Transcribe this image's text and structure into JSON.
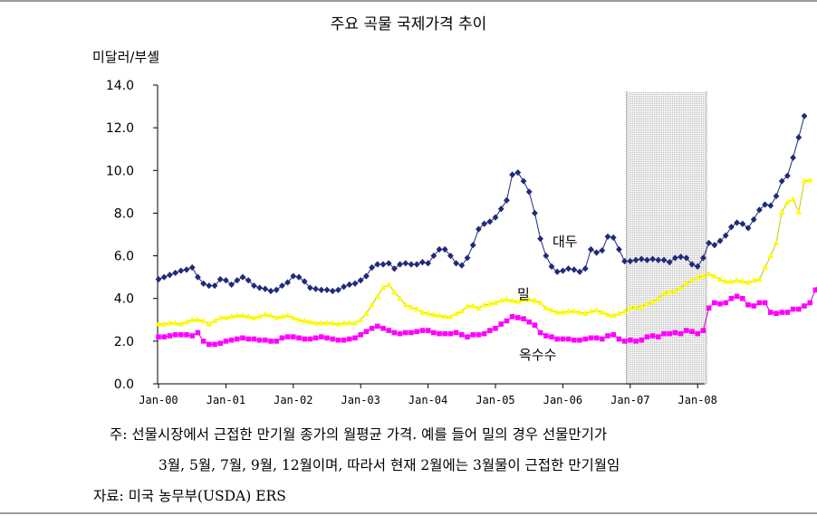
{
  "title": "주요 곡물 국제가격 추이",
  "unit_label": "미달러/부셸",
  "note_line1": "주: 선물시장에서 근접한 만기월 종가의 월평균 가격. 예를 들어 밀의 경우 선물만기가",
  "note_line2": "3월, 5월, 7월, 9월, 12월이며, 따라서 현재 2월에는 3월물이 근접한 만기월임",
  "source": "자료: 미국 농무부(USDA) ERS",
  "chart_data": {
    "type": "line",
    "title": "주요 곡물 국제가격 추이",
    "ylabel": "미달러/부셸",
    "ylim": [
      0,
      14
    ],
    "y_ticks": [
      "14.0",
      "12.0",
      "10.0",
      "8.0",
      "6.0",
      "4.0",
      "2.0",
      "0.0"
    ],
    "x_ticks": [
      "Jan-00",
      "Jan-01",
      "Jan-02",
      "Jan-03",
      "Jan-04",
      "Jan-05",
      "Jan-06",
      "Jan-07",
      "Jan-08"
    ],
    "x_start": "Jan-00",
    "shaded_region": [
      "Dec-06",
      "Feb-08"
    ],
    "series": [
      {
        "name": "대두",
        "color": "#1f2a7a",
        "marker": "diamond",
        "values": [
          4.9,
          5.0,
          5.1,
          5.2,
          5.3,
          5.35,
          5.45,
          5.0,
          4.7,
          4.6,
          4.6,
          4.9,
          4.85,
          4.65,
          4.85,
          5.0,
          4.85,
          4.6,
          4.5,
          4.45,
          4.35,
          4.4,
          4.6,
          4.75,
          5.05,
          5.0,
          4.8,
          4.5,
          4.45,
          4.4,
          4.4,
          4.35,
          4.4,
          4.55,
          4.65,
          4.7,
          4.85,
          5.05,
          5.45,
          5.6,
          5.6,
          5.65,
          5.4,
          5.6,
          5.65,
          5.6,
          5.6,
          5.7,
          5.65,
          6.0,
          6.3,
          6.3,
          6.0,
          5.65,
          5.55,
          5.9,
          6.5,
          7.25,
          7.5,
          7.6,
          7.8,
          8.2,
          8.6,
          9.8,
          9.9,
          9.5,
          9.0,
          8.0,
          6.8,
          6.0,
          5.5,
          5.25,
          5.3,
          5.4,
          5.35,
          5.25,
          5.4,
          6.3,
          6.15,
          6.25,
          6.9,
          6.85,
          6.3,
          5.75,
          5.75,
          5.8,
          5.85,
          5.8,
          5.85,
          5.8,
          5.8,
          5.7,
          5.9,
          5.95,
          5.9,
          5.6,
          5.5,
          5.9,
          6.6,
          6.5,
          6.7,
          6.95,
          7.35,
          7.55,
          7.5,
          7.3,
          7.7,
          8.15,
          8.4,
          8.35,
          8.8,
          9.5,
          9.75,
          10.6,
          11.55,
          12.55
        ]
      },
      {
        "name": "밀",
        "color": "#ffff00",
        "marker": "triangle",
        "values": [
          2.8,
          2.8,
          2.85,
          2.85,
          2.8,
          2.9,
          3.0,
          3.0,
          2.95,
          2.8,
          2.95,
          3.1,
          3.1,
          3.15,
          3.2,
          3.2,
          3.15,
          3.1,
          3.15,
          3.25,
          3.2,
          3.1,
          3.15,
          3.2,
          3.1,
          3.0,
          2.95,
          2.9,
          2.85,
          2.85,
          2.85,
          2.85,
          2.8,
          2.85,
          2.85,
          2.85,
          3.0,
          3.3,
          3.7,
          4.1,
          4.5,
          4.65,
          4.3,
          4.0,
          3.7,
          3.6,
          3.5,
          3.35,
          3.3,
          3.25,
          3.2,
          3.15,
          3.15,
          3.3,
          3.4,
          3.65,
          3.65,
          3.55,
          3.7,
          3.75,
          3.8,
          3.9,
          3.95,
          3.9,
          3.85,
          3.95,
          3.95,
          3.9,
          3.8,
          3.55,
          3.45,
          3.35,
          3.35,
          3.4,
          3.4,
          3.35,
          3.3,
          3.4,
          3.45,
          3.35,
          3.25,
          3.2,
          3.3,
          3.4,
          3.55,
          3.6,
          3.6,
          3.75,
          3.85,
          4.0,
          4.25,
          4.3,
          4.35,
          4.5,
          4.7,
          4.85,
          5.0,
          5.05,
          5.15,
          5.05,
          4.9,
          4.8,
          4.8,
          4.85,
          4.8,
          4.75,
          4.85,
          4.9,
          5.45,
          6.0,
          6.6,
          8.05,
          8.5,
          8.65,
          8.05,
          9.5,
          9.55
        ]
      },
      {
        "name": "옥수수",
        "color": "#ff00ff",
        "marker": "square",
        "values": [
          2.2,
          2.2,
          2.25,
          2.3,
          2.3,
          2.3,
          2.25,
          2.4,
          2.0,
          1.85,
          1.85,
          1.9,
          2.0,
          2.05,
          2.1,
          2.15,
          2.1,
          2.1,
          2.05,
          2.05,
          2.0,
          2.0,
          2.15,
          2.2,
          2.2,
          2.15,
          2.1,
          2.1,
          2.15,
          2.2,
          2.15,
          2.1,
          2.05,
          2.05,
          2.1,
          2.15,
          2.3,
          2.45,
          2.6,
          2.7,
          2.6,
          2.5,
          2.4,
          2.35,
          2.4,
          2.4,
          2.45,
          2.5,
          2.5,
          2.4,
          2.35,
          2.35,
          2.35,
          2.4,
          2.3,
          2.2,
          2.3,
          2.3,
          2.35,
          2.5,
          2.6,
          2.8,
          2.95,
          3.15,
          3.1,
          3.05,
          2.9,
          2.75,
          2.4,
          2.25,
          2.2,
          2.1,
          2.1,
          2.1,
          2.05,
          2.05,
          2.1,
          2.15,
          2.15,
          2.1,
          2.25,
          2.3,
          2.1,
          2.0,
          2.05,
          2.0,
          2.05,
          2.2,
          2.25,
          2.2,
          2.35,
          2.35,
          2.4,
          2.35,
          2.5,
          2.45,
          2.35,
          2.5,
          3.55,
          3.8,
          3.75,
          3.8,
          4.0,
          4.1,
          4.0,
          3.7,
          3.65,
          3.8,
          3.8,
          3.35,
          3.3,
          3.35,
          3.35,
          3.5,
          3.5,
          3.65,
          3.8,
          4.4,
          4.9
        ]
      }
    ]
  }
}
